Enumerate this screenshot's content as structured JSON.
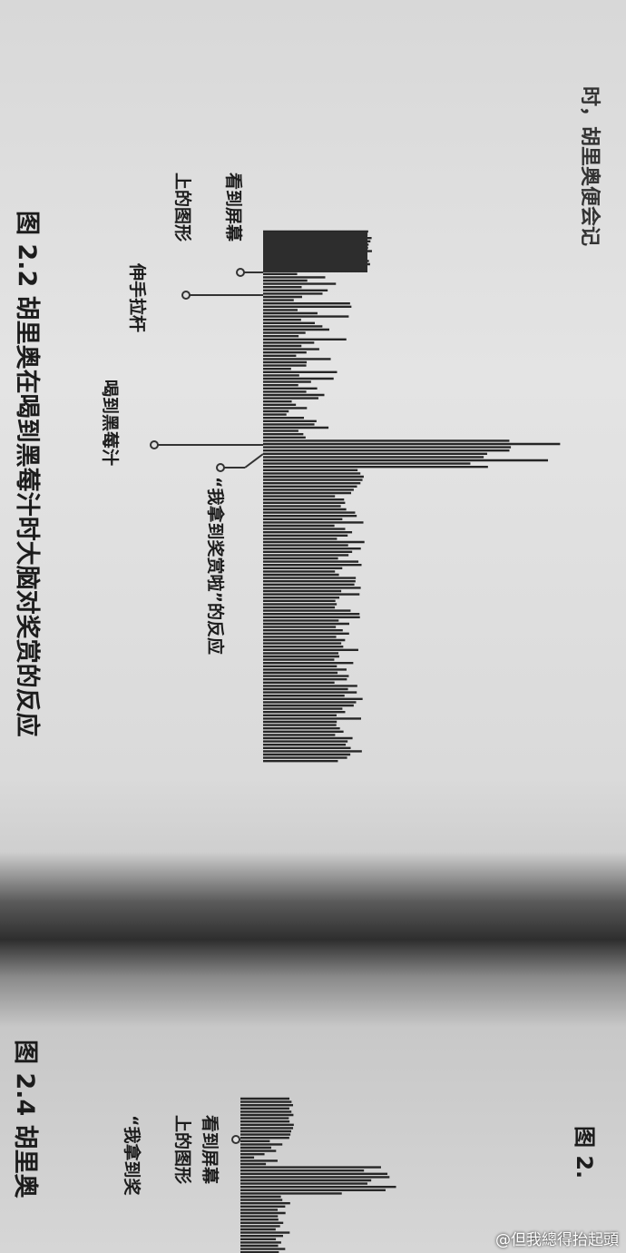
{
  "page": {
    "header_text": "时，胡里奥便会记",
    "figure_2_2": {
      "caption": "图 2.2  胡里奥在喝到黑莓汁时大脑对奖赏的反应",
      "labels": [
        "看到屏幕",
        "上的图形",
        "伸手拉杆",
        "喝到黑莓汁",
        "“我拿到奖赏啦”的反应"
      ]
    },
    "figure_2_4": {
      "caption": "图 2.4  胡里奥",
      "labels": [
        "看到屏幕",
        "上的图形",
        "“我拿到奖"
      ]
    },
    "next_figure": "图 2.",
    "watermark": "@但我總得抬起頭"
  }
}
